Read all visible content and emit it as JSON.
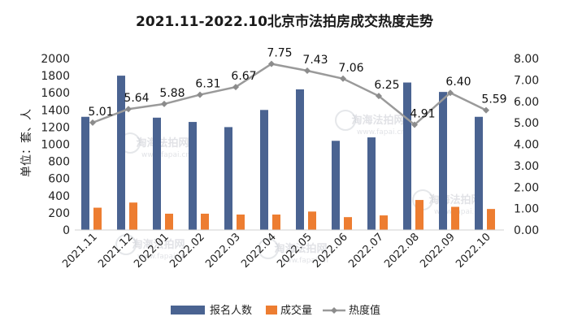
{
  "chart_data": {
    "type": "bar",
    "title": "2021.11-2022.10北京市法拍房成交热度走势",
    "ylabel": "单位：套、人",
    "categories": [
      "2021.11",
      "2021.12",
      "2022.01",
      "2022.02",
      "2022.03",
      "2022.04",
      "2022.05",
      "2022.06",
      "2022.07",
      "2022.08",
      "2022.09",
      "2022.10"
    ],
    "ylim": [
      0,
      2000
    ],
    "y_ticks": [
      "0",
      "200",
      "400",
      "600",
      "800",
      "1000",
      "1200",
      "1400",
      "1600",
      "1800",
      "2000"
    ],
    "y2lim": [
      0,
      8
    ],
    "y2_ticks": [
      "0.00",
      "1.00",
      "2.00",
      "3.00",
      "4.00",
      "5.00",
      "6.00",
      "7.00",
      "8.00"
    ],
    "series": [
      {
        "name": "报名人数",
        "type": "bar",
        "axis": "left",
        "color": "#4a6391",
        "values": [
          1320,
          1800,
          1310,
          1260,
          1200,
          1400,
          1640,
          1040,
          1080,
          1720,
          1610,
          1320
        ]
      },
      {
        "name": "成交量",
        "type": "bar",
        "axis": "left",
        "color": "#ed7d31",
        "values": [
          260,
          320,
          190,
          190,
          180,
          180,
          215,
          150,
          170,
          350,
          270,
          245
        ]
      },
      {
        "name": "热度值",
        "type": "line",
        "axis": "right",
        "color": "#9a9a9a",
        "values": [
          5.01,
          5.64,
          5.88,
          6.31,
          6.67,
          7.75,
          7.43,
          7.06,
          6.25,
          4.91,
          6.4,
          5.59
        ],
        "labels": [
          "5.01",
          "5.64",
          "5.88",
          "6.31",
          "6.67",
          "7.75",
          "7.43",
          "7.06",
          "6.25",
          "4.91",
          "6.40",
          "5.59"
        ]
      }
    ],
    "legend_position": "bottom",
    "grid": false
  },
  "watermark": {
    "site_name": "淘海法拍网",
    "url": "www.fapai.cn"
  }
}
